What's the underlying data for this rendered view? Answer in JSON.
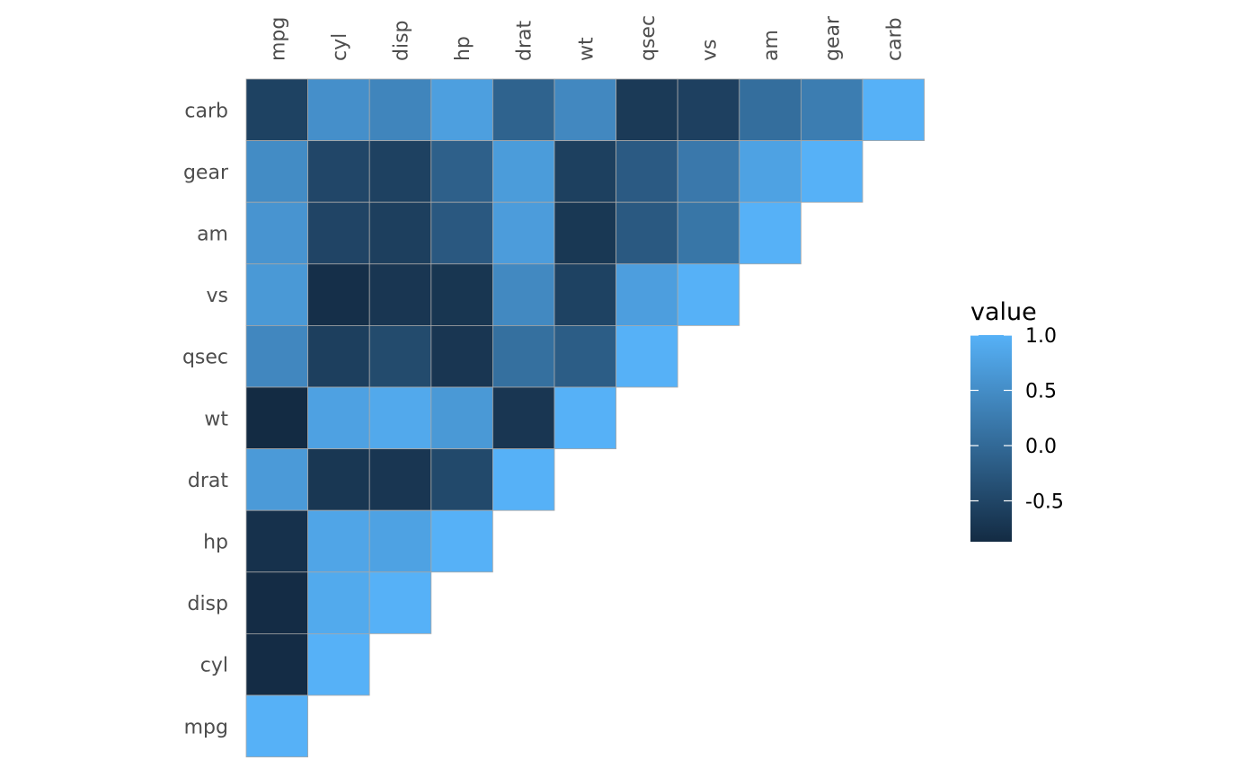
{
  "chart_data": {
    "type": "heatmap",
    "variables": [
      "mpg",
      "cyl",
      "disp",
      "hp",
      "drat",
      "wt",
      "qsec",
      "vs",
      "am",
      "gear",
      "carb"
    ],
    "x_order": [
      "mpg",
      "cyl",
      "disp",
      "hp",
      "drat",
      "wt",
      "qsec",
      "vs",
      "am",
      "gear",
      "carb"
    ],
    "y_order_top_to_bottom": [
      "carb",
      "gear",
      "am",
      "vs",
      "qsec",
      "wt",
      "drat",
      "hp",
      "disp",
      "cyl",
      "mpg"
    ],
    "layout": "upper-triangle",
    "matrix": [
      [
        1.0,
        -0.85,
        -0.85,
        -0.78,
        0.68,
        -0.87,
        0.42,
        0.66,
        0.6,
        0.48,
        -0.55
      ],
      [
        -0.85,
        1.0,
        0.9,
        0.83,
        -0.7,
        0.78,
        -0.59,
        -0.81,
        -0.52,
        -0.49,
        0.53
      ],
      [
        -0.85,
        0.9,
        1.0,
        0.79,
        -0.71,
        0.89,
        -0.43,
        -0.71,
        -0.59,
        -0.56,
        0.39
      ],
      [
        -0.78,
        0.83,
        0.79,
        1.0,
        -0.45,
        0.66,
        -0.71,
        -0.72,
        -0.24,
        -0.13,
        0.75
      ],
      [
        0.68,
        -0.7,
        -0.71,
        -0.45,
        1.0,
        -0.71,
        0.09,
        0.44,
        0.71,
        0.7,
        -0.09
      ],
      [
        -0.87,
        0.78,
        0.89,
        0.66,
        -0.71,
        1.0,
        -0.17,
        -0.55,
        -0.69,
        -0.58,
        0.43
      ],
      [
        0.42,
        -0.59,
        -0.43,
        -0.71,
        0.09,
        -0.17,
        1.0,
        0.74,
        -0.23,
        -0.21,
        -0.66
      ],
      [
        0.66,
        -0.81,
        -0.71,
        -0.72,
        0.44,
        -0.55,
        0.74,
        1.0,
        0.17,
        0.21,
        -0.57
      ],
      [
        0.6,
        -0.52,
        -0.59,
        -0.24,
        0.71,
        -0.69,
        -0.23,
        0.17,
        1.0,
        0.79,
        0.06
      ],
      [
        0.48,
        -0.49,
        -0.56,
        -0.13,
        0.7,
        -0.58,
        -0.21,
        0.21,
        0.79,
        1.0,
        0.27
      ],
      [
        -0.55,
        0.53,
        0.39,
        0.75,
        -0.09,
        0.43,
        -0.66,
        -0.57,
        0.06,
        0.27,
        1.0
      ]
    ],
    "legend": {
      "title": "value",
      "ticks": [
        1.0,
        0.5,
        0.0,
        -0.5
      ],
      "tick_labels": [
        "1.0",
        "0.5",
        "0.0",
        "-0.5"
      ],
      "range": [
        -0.87,
        1.0
      ],
      "placement": "right"
    },
    "colors": {
      "low": "#132B43",
      "high": "#56B1F7",
      "tile_border": "#a8a8a8"
    },
    "grid": false
  }
}
